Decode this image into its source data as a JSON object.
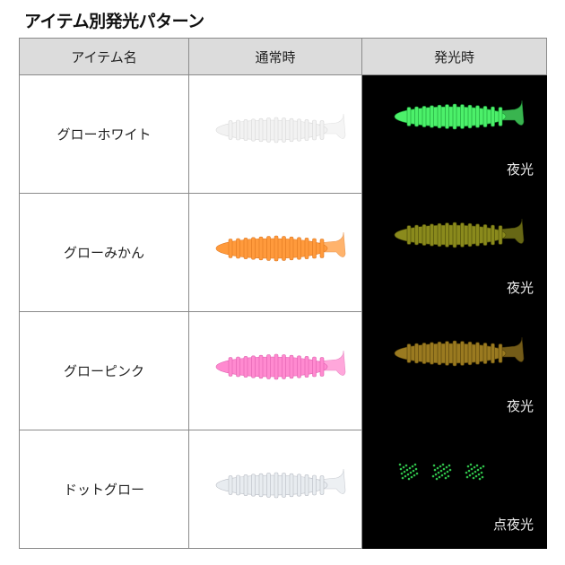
{
  "title": "アイテム別発光パターン",
  "headers": [
    "アイテム名",
    "通常時",
    "発光時"
  ],
  "rows": [
    {
      "name": "グローホワイト",
      "normal_color": "#f2f2f2",
      "normal_rib": "#d8d8d8",
      "glow_color": "#4cf06a",
      "glow_rib": "#1c9a38",
      "glow_label": "夜光",
      "glow_pattern": "solid"
    },
    {
      "name": "グローみかん",
      "normal_color": "#ff9a3c",
      "normal_rib": "#e07820",
      "glow_color": "#8a8a1c",
      "glow_rib": "#4a4a08",
      "glow_label": "夜光",
      "glow_pattern": "solid"
    },
    {
      "name": "グローピンク",
      "normal_color": "#ff8ad0",
      "normal_rib": "#e060b0",
      "glow_color": "#9a7a20",
      "glow_rib": "#54400a",
      "glow_label": "夜光",
      "glow_pattern": "solid"
    },
    {
      "name": "ドットグロー",
      "normal_color": "#e8ecf0",
      "normal_rib": "#b8bcc4",
      "glow_color": "#2fbf4a",
      "glow_rib": "#000000",
      "glow_label": "点夜光",
      "glow_pattern": "dotted"
    }
  ]
}
